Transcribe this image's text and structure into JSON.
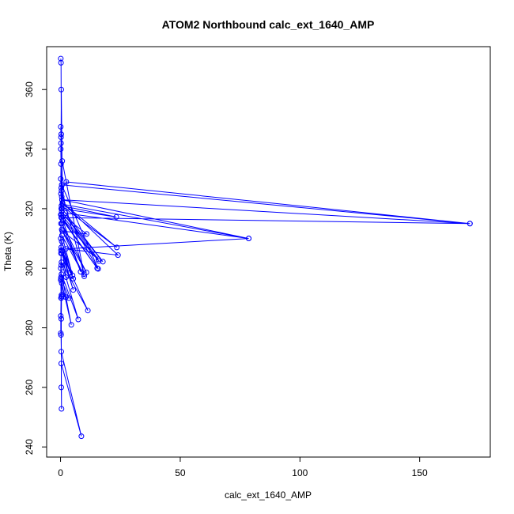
{
  "chart_data": {
    "type": "line",
    "title": "ATOM2 Northbound calc_ext_1640_AMP",
    "xlabel": "calc_ext_1640_AMP",
    "ylabel": "Theta (K)",
    "xlim": [
      -5.8,
      179.5
    ],
    "ylim": [
      236.6,
      374.4
    ],
    "xticks": [
      0,
      50,
      100,
      150
    ],
    "yticks": [
      240,
      260,
      280,
      300,
      320,
      340,
      360
    ],
    "grid": false,
    "legend": "none",
    "color": "#0000ff",
    "series": [
      {
        "values": [
          [
            0.1,
            370.4
          ],
          [
            0.2,
            369.0
          ],
          [
            0.3,
            345.0
          ],
          [
            0.1,
            340.0
          ],
          [
            0.2,
            335.0
          ],
          [
            0.1,
            330.0
          ],
          [
            0.2,
            325.0
          ],
          [
            0.3,
            320.0
          ],
          [
            0.2,
            315.0
          ],
          [
            0.1,
            310.0
          ],
          [
            0.2,
            305.0
          ],
          [
            0.1,
            300.0
          ],
          [
            0.1,
            296.0
          ],
          [
            0.2,
            290.0
          ],
          [
            0.1,
            284.0
          ],
          [
            0.1,
            278.2
          ],
          [
            0.2,
            277.6
          ],
          [
            0.3,
            272.0
          ],
          [
            8.7,
            243.6
          ],
          [
            0.3,
            268.0
          ],
          [
            0.4,
            252.8
          ],
          [
            0.3,
            260.0
          ],
          [
            0.3,
            283.0
          ],
          [
            0.4,
            290.5
          ],
          [
            0.2,
            296.5
          ],
          [
            3.5,
            290.0
          ],
          [
            2.2,
            290.3
          ],
          [
            1.0,
            291.0
          ],
          [
            0.5,
            295.0
          ],
          [
            4.5,
            281.0
          ],
          [
            0.4,
            298.0
          ],
          [
            7.4,
            282.8
          ],
          [
            0.4,
            302.0
          ],
          [
            11.4,
            285.8
          ],
          [
            0.5,
            305.0
          ],
          [
            5.3,
            292.7
          ],
          [
            0.3,
            307.0
          ],
          [
            5.3,
            296.5
          ],
          [
            2.3,
            297.0
          ],
          [
            0.7,
            306.0
          ],
          [
            4.0,
            298.5
          ],
          [
            0.5,
            309.0
          ],
          [
            5.0,
            297.6
          ],
          [
            0.6,
            311.0
          ],
          [
            9.9,
            297.3
          ],
          [
            0.5,
            313.0
          ],
          [
            10.8,
            298.6
          ],
          [
            0.6,
            315.0
          ],
          [
            8.4,
            298.8
          ],
          [
            1.0,
            316.0
          ],
          [
            15.3,
            300.0
          ],
          [
            0.5,
            317.0
          ],
          [
            16.0,
            302.4
          ],
          [
            0.4,
            318.0
          ],
          [
            10.9,
            311.5
          ],
          [
            0.7,
            312.5
          ],
          [
            15.8,
            303.0
          ],
          [
            0.5,
            319.0
          ],
          [
            17.7,
            302.2
          ],
          [
            0.6,
            320.0
          ],
          [
            23.3,
            317.2
          ],
          [
            0.4,
            321.0
          ],
          [
            23.5,
            307.0
          ],
          [
            0.8,
            322.0
          ],
          [
            24.0,
            304.4
          ],
          [
            2.2,
            306.5
          ],
          [
            78.6,
            310.0
          ],
          [
            0.6,
            323.0
          ],
          [
            171.0,
            315.0
          ],
          [
            0.3,
            317.0
          ],
          [
            0.5,
            324.0
          ],
          [
            0.7,
            336.0
          ],
          [
            9.8,
            298.0
          ],
          [
            0.4,
            326.0
          ],
          [
            2.4,
            329.0
          ],
          [
            171.0,
            315.0
          ],
          [
            0.5,
            328.0
          ],
          [
            15.7,
            299.8
          ],
          [
            2.1,
            318.5
          ],
          [
            78.6,
            310.0
          ],
          [
            0.8,
            321.5
          ],
          [
            0.3,
            360.0
          ],
          [
            0.2,
            342.0
          ],
          [
            0.1,
            347.5
          ],
          [
            0.2,
            344.0
          ],
          [
            0.3,
            327.0
          ],
          [
            0.1,
            318.0
          ],
          [
            0.2,
            306.0
          ],
          [
            0.3,
            301.0
          ],
          [
            0.2,
            297.0
          ],
          [
            0.4,
            291.0
          ],
          [
            0.3,
            290.0
          ]
        ]
      }
    ]
  }
}
